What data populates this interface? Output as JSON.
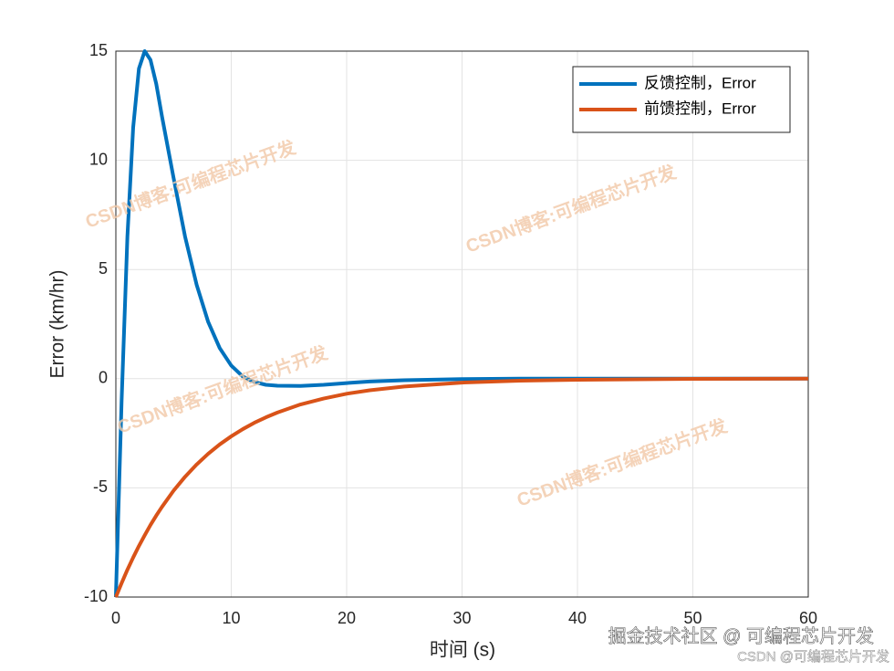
{
  "chart_data": {
    "type": "line",
    "ylabel": "Error (km/hr)",
    "xlabel": "时间 (s)",
    "x": [
      0,
      0.5,
      1,
      1.5,
      2,
      2.5,
      3,
      3.5,
      4,
      5,
      6,
      7,
      8,
      9,
      10,
      11,
      12,
      13,
      14,
      16,
      18,
      20,
      22,
      25,
      30,
      35,
      40,
      50,
      60
    ],
    "series": [
      {
        "name": "反馈控制，Error",
        "color": "#0072BD",
        "values": [
          -10,
          -1,
          6.5,
          11.5,
          14.2,
          15,
          14.6,
          13.5,
          12,
          9.2,
          6.5,
          4.3,
          2.6,
          1.4,
          0.6,
          0.1,
          -0.15,
          -0.28,
          -0.32,
          -0.33,
          -0.28,
          -0.2,
          -0.13,
          -0.07,
          -0.02,
          0,
          0,
          0,
          0
        ]
      },
      {
        "name": "前馈控制，Error",
        "color": "#D95319",
        "values": [
          -10,
          -9.36,
          -8.75,
          -8.19,
          -7.66,
          -7.17,
          -6.7,
          -6.27,
          -5.87,
          -5.13,
          -4.49,
          -3.93,
          -3.44,
          -3.01,
          -2.64,
          -2.31,
          -2.02,
          -1.77,
          -1.55,
          -1.18,
          -0.91,
          -0.69,
          -0.53,
          -0.36,
          -0.18,
          -0.09,
          -0.05,
          -0.01,
          0
        ]
      }
    ],
    "xlim": [
      0,
      60
    ],
    "xticks": [
      0,
      10,
      20,
      30,
      40,
      50,
      60
    ],
    "ylim": [
      -10,
      15
    ],
    "yticks": [
      -10,
      -5,
      0,
      5,
      10,
      15
    ],
    "grid": true,
    "legend": "upper right"
  },
  "watermark": "CSDN博客:可编程芯片开发",
  "footer": [
    "掘金技术社区 @ 可编程芯片开发",
    "CSDN @可编程芯片开发"
  ]
}
